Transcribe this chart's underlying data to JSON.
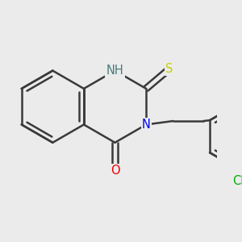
{
  "bg_color": "#ebebeb",
  "bond_color": "#3a3a3a",
  "bond_width": 1.8,
  "atom_colors": {
    "N": "#0000ee",
    "O": "#ee0000",
    "S": "#cccc00",
    "Cl": "#00aa00",
    "NH": "#0000ee"
  },
  "font_size": 10.5,
  "fig_size": [
    3.0,
    3.0
  ],
  "dpi": 100,
  "xoff": -0.5,
  "yoff": 0.15,
  "bl": 1.0
}
